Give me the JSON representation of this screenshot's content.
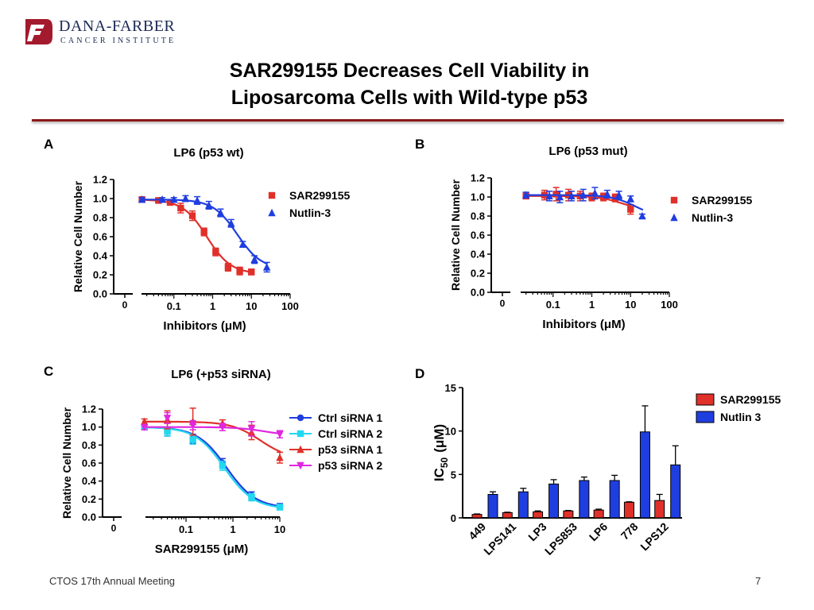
{
  "header": {
    "logo_name": "DANA-FARBER",
    "logo_subtitle": "CANCER INSTITUTE",
    "title_line1": "SAR299155 Decreases Cell Viability in",
    "title_line2": "Liposarcoma Cells with Wild-type p53"
  },
  "footer": {
    "meeting": "CTOS 17th Annual Meeting",
    "page_number": "7"
  },
  "colors": {
    "red": "#e0302a",
    "blue": "#1f3ee0",
    "cyan": "#22d8f0",
    "magenta": "#e027e0",
    "rule": "#8b1a1a"
  },
  "chart_data": [
    {
      "panel": "A",
      "type": "scatter",
      "title": "LP6 (p53 wt)",
      "xlabel": "Inhibitors (μM)",
      "ylabel": "Relative Cell Number",
      "x_scale": "log",
      "xlim": [
        0.01,
        100
      ],
      "ylim": [
        0,
        1.2
      ],
      "x_ticks": [
        "0",
        "0.1",
        "1",
        "10",
        "100"
      ],
      "y_ticks": [
        "0.0",
        "0.2",
        "0.4",
        "0.6",
        "0.8",
        "1.0",
        "1.2"
      ],
      "legend_position": "top-right",
      "series": [
        {
          "name": "SAR299155",
          "color": "#e0302a",
          "marker": "square",
          "x": [
            0.015,
            0.04,
            0.08,
            0.15,
            0.3,
            0.6,
            1.2,
            2.5,
            5,
            10
          ],
          "y": [
            0.99,
            0.98,
            0.96,
            0.9,
            0.82,
            0.65,
            0.44,
            0.28,
            0.24,
            0.23
          ],
          "err": [
            0.02,
            0.02,
            0.03,
            0.05,
            0.05,
            0.04,
            0.04,
            0.04,
            0.04,
            0.03
          ]
        },
        {
          "name": "Nutlin-3",
          "color": "#1f3ee0",
          "marker": "triangle",
          "x": [
            0.015,
            0.05,
            0.1,
            0.2,
            0.4,
            0.8,
            1.6,
            3,
            6,
            12,
            25
          ],
          "y": [
            0.99,
            0.99,
            0.99,
            1.0,
            0.98,
            0.93,
            0.85,
            0.74,
            0.52,
            0.36,
            0.28
          ],
          "err": [
            0.02,
            0.02,
            0.02,
            0.03,
            0.04,
            0.04,
            0.04,
            0.04,
            0.03,
            0.04,
            0.05
          ]
        }
      ]
    },
    {
      "panel": "B",
      "type": "scatter",
      "title": "LP6 (p53 mut)",
      "xlabel": "Inhibitors (μM)",
      "ylabel": "Relative Cell Number",
      "x_scale": "log",
      "xlim": [
        0.01,
        100
      ],
      "ylim": [
        0,
        1.2
      ],
      "x_ticks": [
        "0",
        "0.1",
        "1",
        "10",
        "100"
      ],
      "y_ticks": [
        "0.0",
        "0.2",
        "0.4",
        "0.6",
        "0.8",
        "1.0",
        "1.2"
      ],
      "legend_position": "top-right",
      "series": [
        {
          "name": "SAR299155",
          "color": "#e0302a",
          "marker": "square",
          "x": [
            0.02,
            0.06,
            0.12,
            0.25,
            0.5,
            1,
            2,
            4,
            10
          ],
          "y": [
            1.01,
            1.02,
            1.03,
            1.02,
            1.01,
            1.0,
            1.0,
            0.99,
            0.87
          ],
          "err": [
            0.03,
            0.05,
            0.07,
            0.06,
            0.05,
            0.04,
            0.04,
            0.04,
            0.05
          ]
        },
        {
          "name": "Nutlin-3",
          "color": "#1f3ee0",
          "marker": "triangle",
          "x": [
            0.02,
            0.08,
            0.15,
            0.3,
            0.6,
            1.2,
            2.5,
            5,
            10,
            20
          ],
          "y": [
            1.02,
            1.01,
            1.0,
            1.01,
            1.02,
            1.04,
            1.03,
            1.02,
            0.98,
            0.8
          ],
          "err": [
            0.03,
            0.05,
            0.06,
            0.05,
            0.06,
            0.06,
            0.04,
            0.04,
            0.03,
            0.02
          ]
        }
      ]
    },
    {
      "panel": "C",
      "type": "scatter",
      "title": "LP6 (+p53 siRNA)",
      "xlabel": "SAR299155 (μM)",
      "ylabel": "Relative Cell Number",
      "x_scale": "log",
      "xlim": [
        0.01,
        10
      ],
      "ylim": [
        0,
        1.2
      ],
      "x_ticks": [
        "0",
        "0.1",
        "1",
        "10"
      ],
      "y_ticks": [
        "0.0",
        "0.2",
        "0.4",
        "0.6",
        "0.8",
        "1.0",
        "1.2"
      ],
      "legend_position": "top-right",
      "series": [
        {
          "name": "Ctrl siRNA 1",
          "color": "#1f3ee0",
          "marker": "circle",
          "x": [
            0.013,
            0.04,
            0.14,
            0.6,
            2.5,
            10
          ],
          "y": [
            1.0,
            0.95,
            0.87,
            0.6,
            0.24,
            0.12
          ],
          "err": [
            0.03,
            0.05,
            0.05,
            0.05,
            0.04,
            0.03
          ]
        },
        {
          "name": "Ctrl siRNA 2",
          "color": "#22d8f0",
          "marker": "square",
          "x": [
            0.013,
            0.04,
            0.14,
            0.6,
            2.5,
            10
          ],
          "y": [
            1.0,
            0.95,
            0.86,
            0.57,
            0.22,
            0.11
          ],
          "err": [
            0.03,
            0.05,
            0.05,
            0.05,
            0.04,
            0.03
          ]
        },
        {
          "name": "p53 siRNA 1",
          "color": "#e0302a",
          "marker": "triangle",
          "x": [
            0.013,
            0.04,
            0.14,
            0.6,
            2.5,
            10
          ],
          "y": [
            1.06,
            1.08,
            1.06,
            1.04,
            0.94,
            0.66
          ],
          "err": [
            0.03,
            0.1,
            0.15,
            0.04,
            0.08,
            0.06
          ]
        },
        {
          "name": "p53 siRNA 2",
          "color": "#e027e0",
          "marker": "triangle-down",
          "x": [
            0.013,
            0.04,
            0.14,
            0.6,
            2.5,
            10
          ],
          "y": [
            1.0,
            1.1,
            1.02,
            1.0,
            0.98,
            0.92
          ],
          "err": [
            0.03,
            0.06,
            0.05,
            0.04,
            0.08,
            0.04
          ]
        }
      ]
    },
    {
      "panel": "D",
      "type": "bar",
      "categories": [
        "449",
        "LPS141",
        "LP3",
        "LPS853",
        "LP6",
        "778",
        "LPS12"
      ],
      "ylabel": "IC50 (μM)",
      "ylabel_main": "IC",
      "ylabel_sub": "50",
      "ylabel_unit": "(μM)",
      "ylim": [
        0,
        15
      ],
      "y_ticks": [
        "0",
        "5",
        "10",
        "15"
      ],
      "legend_position": "top-right",
      "series": [
        {
          "name": "SAR299155",
          "color": "#e0302a",
          "values": [
            0.4,
            0.6,
            0.7,
            0.8,
            0.9,
            1.8,
            2.0
          ],
          "err": [
            0.05,
            0.05,
            0.1,
            0.05,
            0.1,
            0.05,
            0.7
          ]
        },
        {
          "name": "Nutlin 3",
          "color": "#1f3ee0",
          "values": [
            2.7,
            3.0,
            3.9,
            4.3,
            4.3,
            9.9,
            6.1
          ],
          "err": [
            0.3,
            0.4,
            0.5,
            0.4,
            0.6,
            3.0,
            2.2
          ]
        }
      ]
    }
  ]
}
